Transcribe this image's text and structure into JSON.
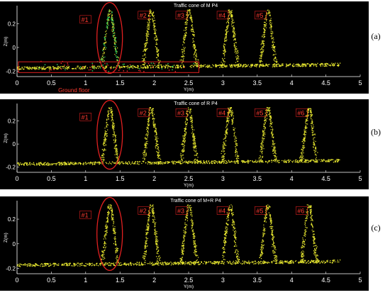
{
  "colors": {
    "background": "#000000",
    "axis": "#ffffff",
    "points": "#e8e830",
    "green_points": "#30d860",
    "red_points": "#ff3030",
    "annotation": "#e02020"
  },
  "chart_data": [
    {
      "type": "scatter",
      "title": "Traffic cone of M P4",
      "xlabel": "Y(m)",
      "ylabel": "Z(m)",
      "xlim": [
        0,
        5
      ],
      "ylim": [
        -0.22,
        0.35
      ],
      "xticks": [
        "0",
        "0.5",
        "1",
        "1.5",
        "2",
        "2.5",
        "3",
        "3.5",
        "4",
        "4.5",
        "5"
      ],
      "yticks": [
        "-0.2",
        "0",
        "0.2"
      ],
      "panel_label": "(a)",
      "cones": [
        {
          "label": "#1",
          "y_center": 1.35
        },
        {
          "label": "#2",
          "y_center": 1.95
        },
        {
          "label": "#3",
          "y_center": 2.5
        },
        {
          "label": "#4",
          "y_center": 3.1
        },
        {
          "label": "#5",
          "y_center": 3.65
        }
      ],
      "annotations": [
        "Ground floor"
      ]
    },
    {
      "type": "scatter",
      "title": "Traffic cone of R P4",
      "xlabel": "Y(m)",
      "ylabel": "Z(m)",
      "xlim": [
        0,
        5
      ],
      "ylim": [
        -0.22,
        0.35
      ],
      "xticks": [
        "0",
        "0.5",
        "1",
        "1.5",
        "2",
        "2.5",
        "3",
        "3.5",
        "4",
        "4.5",
        "5"
      ],
      "yticks": [
        "-0.2",
        "0",
        "0.2"
      ],
      "panel_label": "(b)",
      "cones": [
        {
          "label": "#1",
          "y_center": 1.35
        },
        {
          "label": "#2",
          "y_center": 1.95
        },
        {
          "label": "#3",
          "y_center": 2.5
        },
        {
          "label": "#4",
          "y_center": 3.1
        },
        {
          "label": "#5",
          "y_center": 3.65
        },
        {
          "label": "#6",
          "y_center": 4.25
        }
      ]
    },
    {
      "type": "scatter",
      "title": "Traffic cone of M+R P4",
      "xlabel": "Y(m)",
      "ylabel": "Z(m)",
      "xlim": [
        0,
        5
      ],
      "ylim": [
        -0.22,
        0.35
      ],
      "xticks": [
        "0",
        "0.5",
        "1",
        "1.5",
        "2",
        "2.5",
        "3",
        "3.5",
        "4",
        "4.5",
        "5"
      ],
      "yticks": [
        "-0.2",
        "0",
        "0.2"
      ],
      "panel_label": "(c)",
      "cones": [
        {
          "label": "#1",
          "y_center": 1.35
        },
        {
          "label": "#2",
          "y_center": 1.95
        },
        {
          "label": "#3",
          "y_center": 2.5
        },
        {
          "label": "#4",
          "y_center": 3.1
        },
        {
          "label": "#5",
          "y_center": 3.65
        },
        {
          "label": "#6",
          "y_center": 4.25
        }
      ]
    }
  ]
}
